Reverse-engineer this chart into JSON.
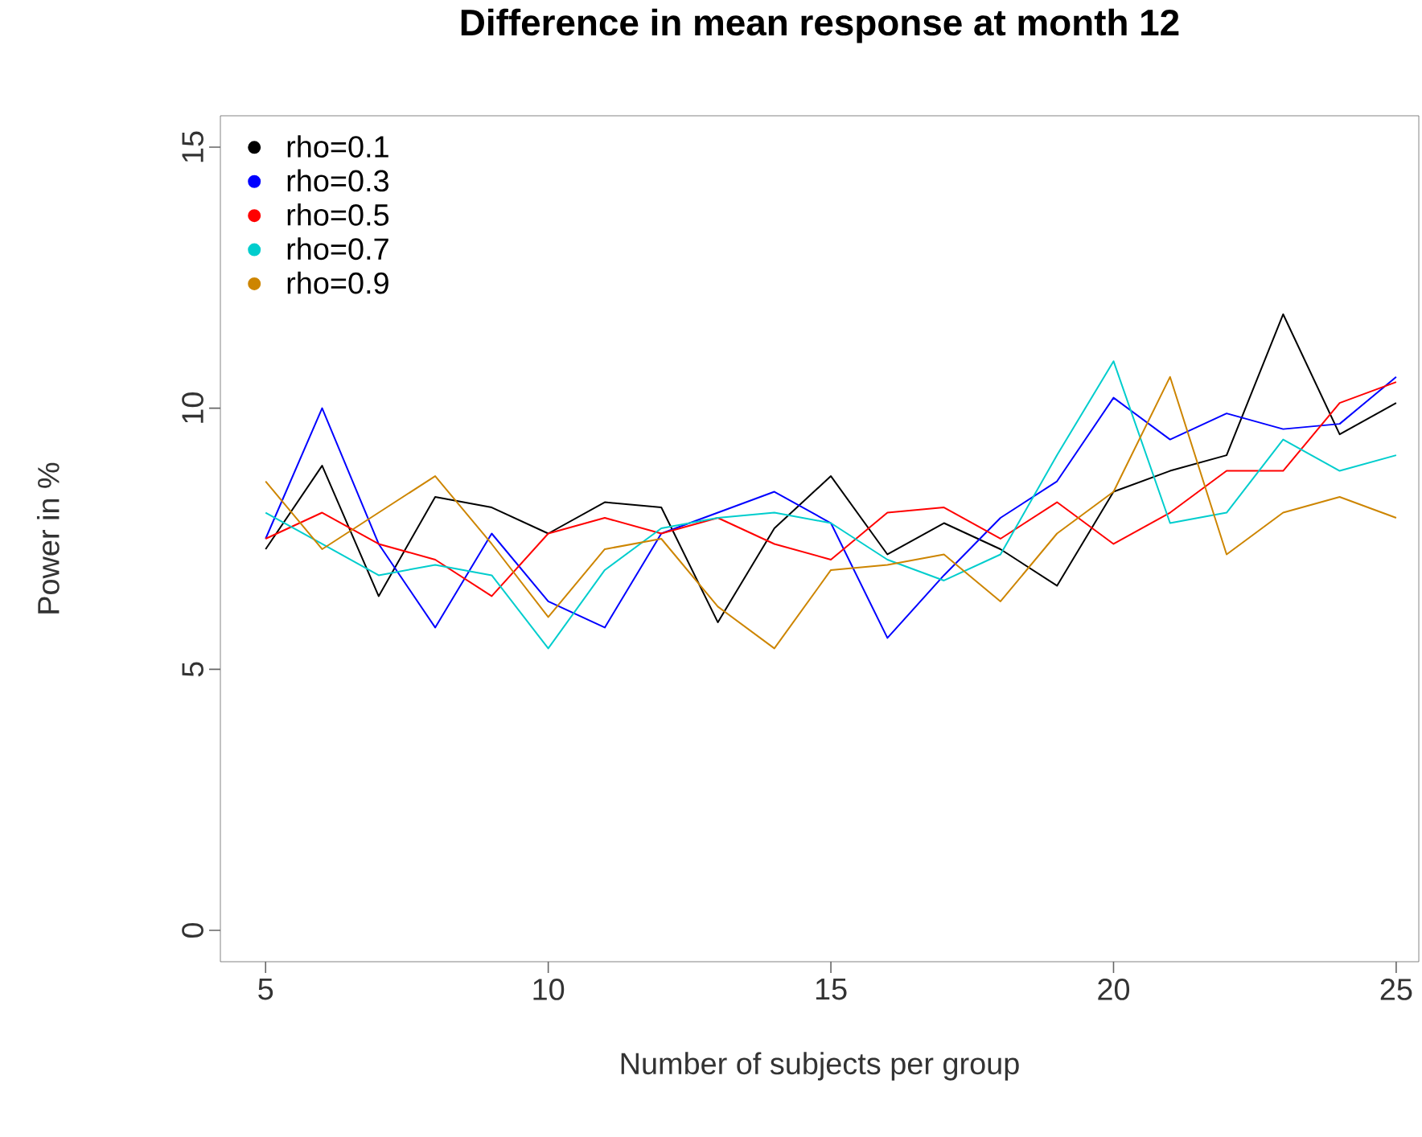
{
  "chart_data": {
    "type": "line",
    "title": "Difference in mean response at month 12",
    "xlabel": "Number of subjects per group",
    "ylabel": "Power in %",
    "x": [
      5,
      6,
      7,
      8,
      9,
      10,
      11,
      12,
      13,
      14,
      15,
      16,
      17,
      18,
      19,
      20,
      21,
      22,
      23,
      24,
      25
    ],
    "xlim": [
      4.2,
      25.4
    ],
    "ylim": [
      -0.6,
      15.6
    ],
    "xticks": [
      5,
      10,
      15,
      20,
      25
    ],
    "yticks": [
      0,
      5,
      10,
      15
    ],
    "legend": "top left",
    "series": [
      {
        "name": "rho=0.1",
        "color": "#000000",
        "values": [
          7.3,
          8.9,
          6.4,
          8.3,
          8.1,
          7.6,
          8.2,
          8.1,
          5.9,
          7.7,
          8.7,
          7.2,
          7.8,
          7.3,
          6.6,
          8.4,
          8.8,
          9.1,
          11.8,
          9.5,
          10.1
        ]
      },
      {
        "name": "rho=0.3",
        "color": "#0000ff",
        "values": [
          7.5,
          10.0,
          7.4,
          5.8,
          7.6,
          6.3,
          5.8,
          7.6,
          8.0,
          8.4,
          7.8,
          5.6,
          6.8,
          7.9,
          8.6,
          10.2,
          9.4,
          9.9,
          9.6,
          9.7,
          10.6
        ]
      },
      {
        "name": "rho=0.5",
        "color": "#ff0000",
        "values": [
          7.5,
          8.0,
          7.4,
          7.1,
          6.4,
          7.6,
          7.9,
          7.6,
          7.9,
          7.4,
          7.1,
          8.0,
          8.1,
          7.5,
          8.2,
          7.4,
          8.0,
          8.8,
          8.8,
          10.1,
          10.5
        ]
      },
      {
        "name": "rho=0.7",
        "color": "#00cdcd",
        "values": [
          8.0,
          7.4,
          6.8,
          7.0,
          6.8,
          5.4,
          6.9,
          7.7,
          7.9,
          8.0,
          7.8,
          7.1,
          6.7,
          7.2,
          9.1,
          10.9,
          7.8,
          8.0,
          9.4,
          8.8,
          9.1
        ]
      },
      {
        "name": "rho=0.9",
        "color": "#cd8500",
        "values": [
          8.6,
          7.3,
          8.0,
          8.7,
          7.4,
          6.0,
          7.3,
          7.5,
          6.2,
          5.4,
          6.9,
          7.0,
          7.2,
          6.3,
          7.6,
          8.4,
          10.6,
          7.2,
          8.0,
          8.3,
          7.9
        ]
      }
    ]
  }
}
